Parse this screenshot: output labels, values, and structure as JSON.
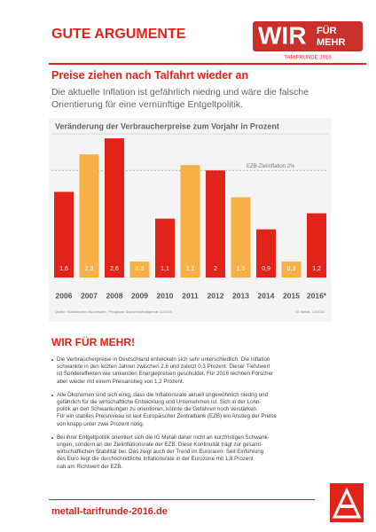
{
  "header": {
    "title": "GUTE ARGUMENTE",
    "logo": {
      "main": "WIR",
      "lines": [
        "FÜR",
        "MEHR"
      ],
      "sub": "TARIFRUNDE 2016"
    }
  },
  "headline": "Preise ziehen nach Talfahrt wieder an",
  "intro": [
    "Die aktuelle Inflation ist gefährlich niedrig und wäre die falsche",
    "Orientierung für eine vernünftige Entgeltpolitik."
  ],
  "chart_data": {
    "type": "bar",
    "title": "Veränderung der Verbraucherpreise zum Vorjahr in Prozent",
    "categories": [
      "2006",
      "2007",
      "2008",
      "2009",
      "2010",
      "2011",
      "2012",
      "2013",
      "2014",
      "2015",
      "2016*"
    ],
    "values": [
      1.6,
      2.3,
      2.6,
      0.3,
      1.1,
      2.1,
      2,
      1.5,
      0.9,
      0.3,
      1.2
    ],
    "value_labels": [
      "1,6",
      "2,3",
      "2,6",
      "0,3",
      "1,1",
      "2,1",
      "2",
      "1,5",
      "0,9",
      "0,3",
      "1,2"
    ],
    "colors": [
      "#e2231a",
      "#f7b047",
      "#e2231a",
      "#f7b047",
      "#e2231a",
      "#f7b047",
      "#e2231a",
      "#f7b047",
      "#e2231a",
      "#f7b047",
      "#e2231a"
    ],
    "ylim": [
      0,
      2.7
    ],
    "reference_line": {
      "value": 2,
      "label": "EZB-Zielinflation 2%"
    },
    "source": "Quelle: Statistisches Bundesamt, *Prognose Sachverständigenrat 11/2015",
    "credit": "IG Metall, 12/2016"
  },
  "section": {
    "title": "WIR FÜR MEHR!",
    "bullets": [
      [
        "Die Verbraucherpreise in Deutschland entwickeln sich sehr unterschiedlich. Die Inflation",
        "schwankte in den letzten Jahren zwischen 2,6 und zuletzt 0,3 Prozent. Dieser Tiefstwert",
        "ist Sondereffekten wie sinkenden Energiepreisen geschuldet. Für 2016 rechnen Forscher",
        "aber wieder mit einem Preisanstieg von 1,2 Prozent."
      ],
      [
        "Alle Ökonomen sind sich einig, dass die Inflationsrate aktuell ungewöhnlich niedrig und",
        "gefährlich für die wirtschaftliche Entwicklung und Unternehmen ist. Sich in der Lohn-",
        "politik an den Schwankungen zu orientieren, könnte die Gefahren noch verstärken.",
        "Für ein stabiles Preisniveau ist laut Europäischer Zentralbank (EZB) ein Anstieg der Preise",
        "von knapp unter zwei Prozent nötig."
      ],
      [
        "Bei ihrer Entgeltpolitik orientiert sich die IG Metall daher nicht an kurzfristigen Schwank-",
        "ungen, sondern an der Zielinflationsrate der EZB. Diese Kontinuität trägt zur gesamt-",
        "wirtschaftlichen Stabilität bei. Das zeigt auch der Trend im Euroraum: Seit Einführung",
        "des Euro liegt die durchschnittliche Inflationsrate in der Eurozone mit 1,8 Prozent",
        "nah am Richtwert der EZB."
      ]
    ]
  },
  "footer": {
    "url": "metall-tarifrunde-2016.de"
  }
}
